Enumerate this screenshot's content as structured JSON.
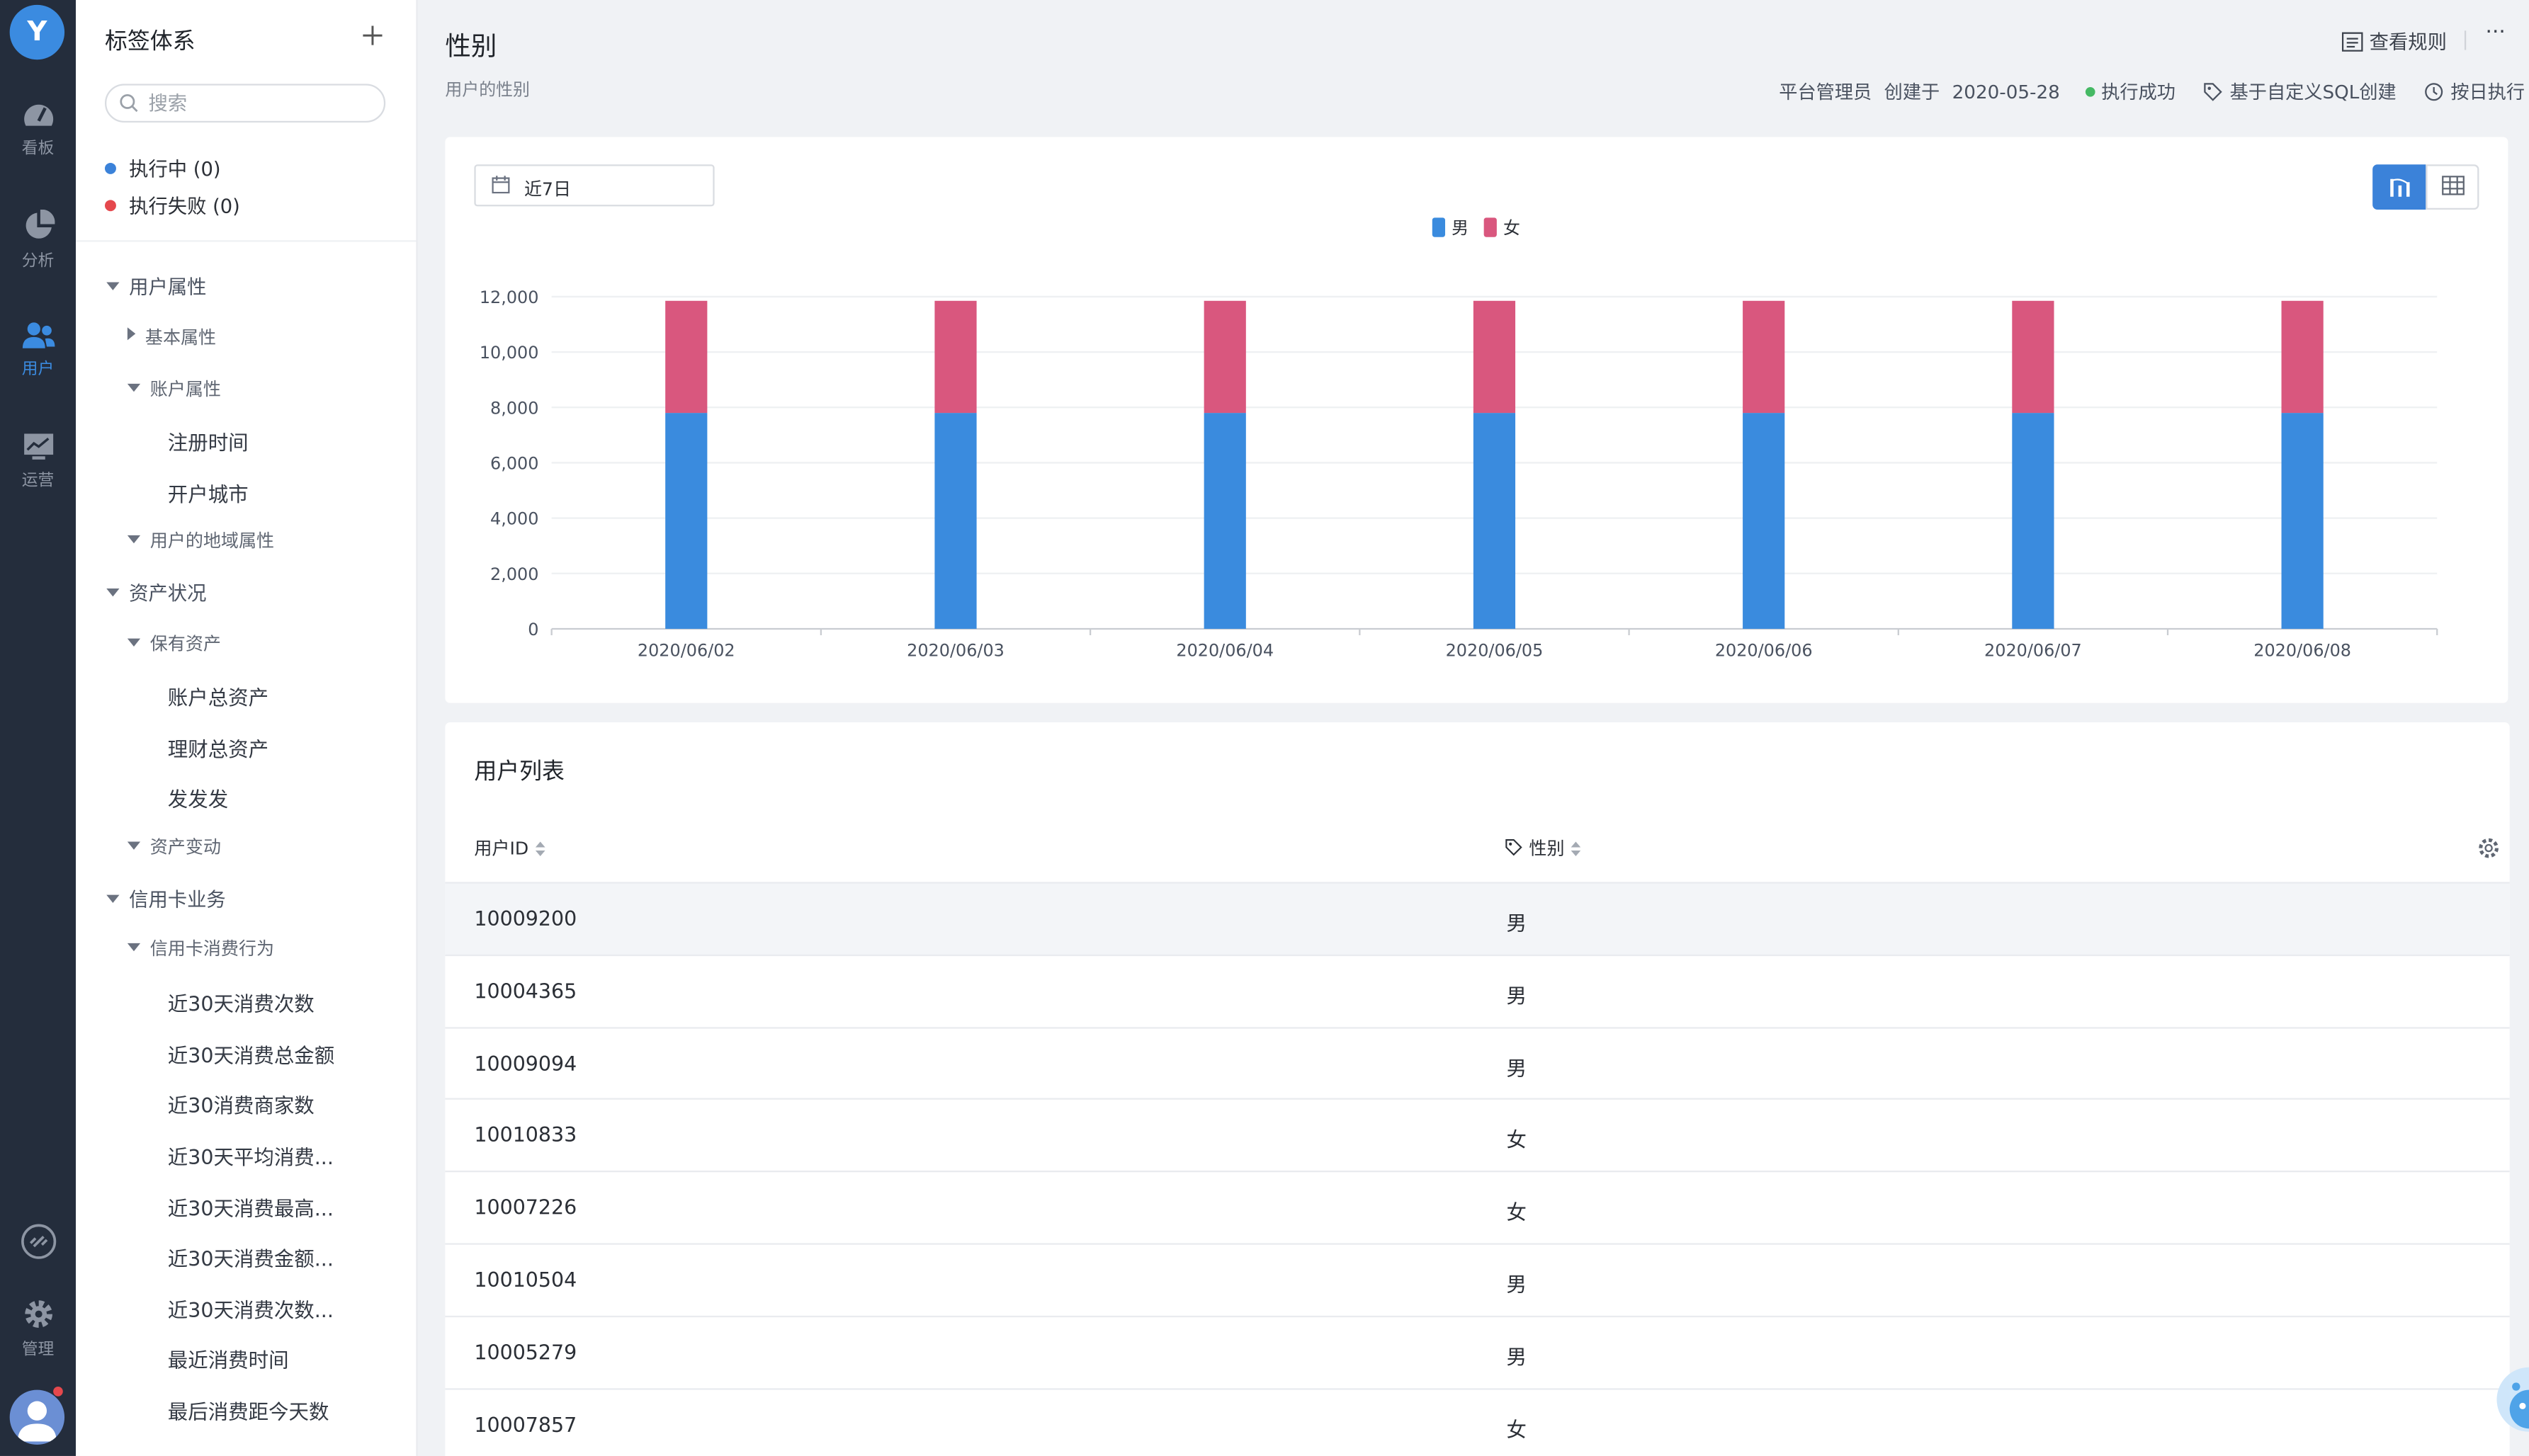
{
  "rail": {
    "logo": "Y",
    "items": [
      {
        "label": "看板",
        "icon": "dashboard-icon"
      },
      {
        "label": "分析",
        "icon": "pie-chart-icon"
      },
      {
        "label": "用户",
        "icon": "users-icon",
        "active": true
      },
      {
        "label": "运营",
        "icon": "monitor-chart-icon"
      }
    ],
    "bottom": [
      {
        "label": "",
        "icon": "link-icon"
      },
      {
        "label": "管理",
        "icon": "gear-icon"
      }
    ]
  },
  "sidebar": {
    "title": "标签体系",
    "search_placeholder": "搜索",
    "running": "执行中 (0)",
    "failed": "执行失败 (0)",
    "tree": [
      {
        "label": "用户属性",
        "level": 0,
        "state": "open"
      },
      {
        "label": "基本属性",
        "level": 1,
        "state": "closed"
      },
      {
        "label": "账户属性",
        "level": 1,
        "state": "open"
      },
      {
        "label": "注册时间",
        "level": 2,
        "state": "leaf"
      },
      {
        "label": "开户城市",
        "level": 2,
        "state": "leaf"
      },
      {
        "label": "用户的地域属性",
        "level": 1,
        "state": "open"
      },
      {
        "label": "资产状况",
        "level": 0,
        "state": "open"
      },
      {
        "label": "保有资产",
        "level": 1,
        "state": "open"
      },
      {
        "label": "账户总资产",
        "level": 2,
        "state": "leaf"
      },
      {
        "label": "理财总资产",
        "level": 2,
        "state": "leaf"
      },
      {
        "label": "发发发",
        "level": 2,
        "state": "leaf"
      },
      {
        "label": "资产变动",
        "level": 1,
        "state": "open"
      },
      {
        "label": "信用卡业务",
        "level": 0,
        "state": "open"
      },
      {
        "label": "信用卡消费行为",
        "level": 1,
        "state": "open"
      },
      {
        "label": "近30天消费次数",
        "level": 2,
        "state": "leaf"
      },
      {
        "label": "近30天消费总金额",
        "level": 2,
        "state": "leaf"
      },
      {
        "label": "近30消费商家数",
        "level": 2,
        "state": "leaf"
      },
      {
        "label": "近30天平均消费...",
        "level": 2,
        "state": "leaf"
      },
      {
        "label": "近30天消费最高...",
        "level": 2,
        "state": "leaf"
      },
      {
        "label": "近30天消费金额...",
        "level": 2,
        "state": "leaf"
      },
      {
        "label": "近30天消费次数...",
        "level": 2,
        "state": "leaf"
      },
      {
        "label": "最近消费时间",
        "level": 2,
        "state": "leaf"
      },
      {
        "label": "最后消费距今天数",
        "level": 2,
        "state": "leaf"
      }
    ]
  },
  "header": {
    "title": "性别",
    "subtitle": "用户的性别",
    "view_rules": "查看规则",
    "more": "···",
    "creator": "平台管理员",
    "created_prefix": "创建于",
    "created_date": "2020-05-28",
    "exec_status": "执行成功",
    "source": "基于自定义SQL创建",
    "schedule": "按日执行"
  },
  "chart_card": {
    "date_range": "近7日"
  },
  "chart_data": {
    "type": "bar",
    "stacked": true,
    "categories": [
      "2020/06/02",
      "2020/06/03",
      "2020/06/04",
      "2020/06/05",
      "2020/06/06",
      "2020/06/07",
      "2020/06/08"
    ],
    "series": [
      {
        "name": "男",
        "color": "#3a8bde",
        "values": [
          7800,
          7800,
          7800,
          7800,
          7800,
          7800,
          7800
        ]
      },
      {
        "name": "女",
        "color": "#d9577e",
        "values": [
          4050,
          4050,
          4050,
          4050,
          4050,
          4050,
          4050
        ]
      }
    ],
    "yticks": [
      "0",
      "2,000",
      "4,000",
      "6,000",
      "8,000",
      "10,000",
      "12,000"
    ],
    "ylim": [
      0,
      12000
    ],
    "legend": "top-center",
    "grid": true
  },
  "table": {
    "title": "用户列表",
    "columns": [
      "用户ID",
      "性别"
    ],
    "rows": [
      [
        "10009200",
        "男"
      ],
      [
        "10004365",
        "男"
      ],
      [
        "10009094",
        "男"
      ],
      [
        "10010833",
        "女"
      ],
      [
        "10007226",
        "女"
      ],
      [
        "10010504",
        "男"
      ],
      [
        "10005279",
        "男"
      ],
      [
        "10007857",
        "女"
      ]
    ]
  }
}
